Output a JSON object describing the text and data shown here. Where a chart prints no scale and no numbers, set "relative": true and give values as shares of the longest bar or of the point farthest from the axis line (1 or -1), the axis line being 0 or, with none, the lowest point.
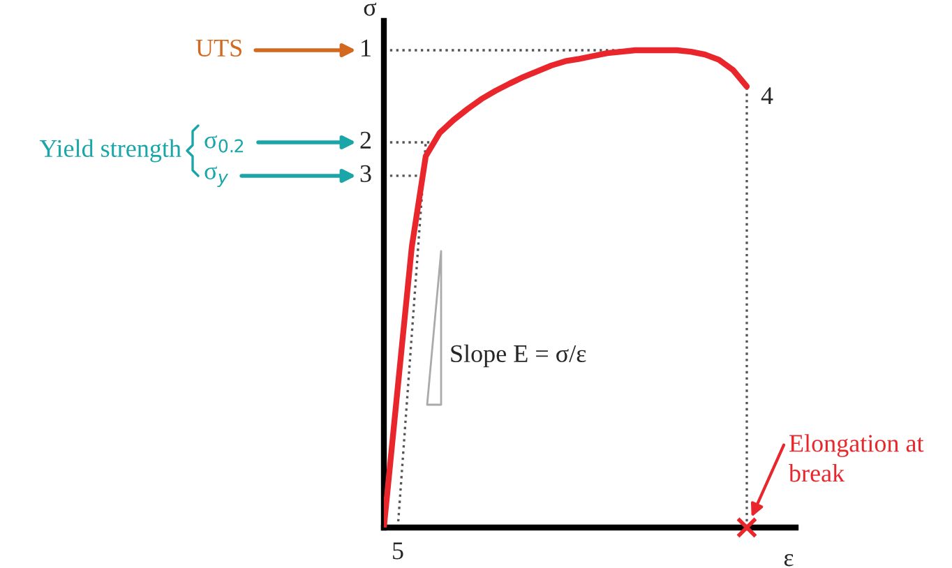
{
  "chart_data": {
    "type": "line",
    "relative": true,
    "xlabel": "ε",
    "ylabel": "σ",
    "categories": [
      null,
      null,
      null,
      null,
      null,
      null,
      null,
      null,
      null,
      null,
      null,
      null,
      null,
      null,
      null,
      null,
      null,
      null,
      null,
      null,
      null,
      null,
      null,
      null,
      null,
      null,
      null
    ],
    "series": [
      {
        "color": "#e8262b",
        "line_style": "solid",
        "values": [
          0,
          0.295,
          0.588,
          0.778,
          0.827,
          0.854,
          0.877,
          0.898,
          0.915,
          0.93,
          0.944,
          0.956,
          0.968,
          0.977,
          0.982,
          0.988,
          0.994,
          0.997,
          1,
          1,
          1,
          1,
          0.997,
          0.991,
          0.98,
          0.959,
          0.924
        ]
      },
      {
        "color": "#555555",
        "line_style": "dotted",
        "values": [
          null,
          0,
          0.404,
          0.807,
          null,
          null,
          null,
          null,
          null,
          null,
          null,
          null,
          null,
          null,
          null,
          null,
          null,
          null,
          null,
          null,
          null,
          null,
          null,
          null,
          null,
          null,
          null
        ]
      }
    ],
    "ref_lines": [
      {
        "axis": "y",
        "value": 1,
        "line_style": "dotted",
        "color": "#555555"
      },
      {
        "axis": "y",
        "value": 0.807,
        "line_style": "dotted",
        "color": "#555555"
      },
      {
        "axis": "y",
        "value": 0.737,
        "line_style": "dotted",
        "color": "#555555"
      }
    ],
    "annotations": [
      "UTS",
      "1",
      "Yield strength",
      "σ$_{0.2}$",
      "σ$_{y}$",
      "2",
      "3",
      "4",
      "5",
      "Slope E = σ/ε",
      "Elongation at\nbreak"
    ],
    "legend": false
  }
}
